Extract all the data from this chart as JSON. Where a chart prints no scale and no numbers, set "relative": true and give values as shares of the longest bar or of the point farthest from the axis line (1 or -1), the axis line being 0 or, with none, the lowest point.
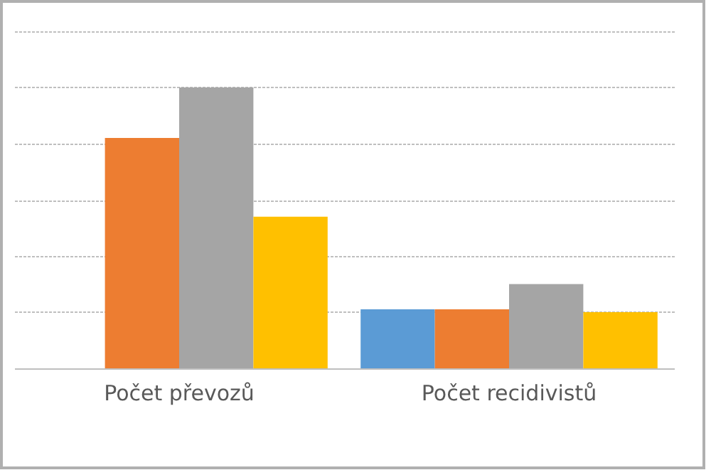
{
  "chart_data": {
    "type": "bar",
    "relative": true,
    "grid": "y",
    "categories": [
      "Počet převozů",
      "Počet recidivistů"
    ],
    "series": [
      {
        "color": "#5b9bd5",
        "values": [
          null,
          0.21
        ]
      },
      {
        "color": "#ed7d31",
        "values": [
          0.82,
          0.21
        ]
      },
      {
        "color": "#a5a5a5",
        "values": [
          1,
          0.3
        ]
      },
      {
        "color": "#ffc000",
        "values": [
          0.54,
          0.2
        ]
      }
    ]
  }
}
